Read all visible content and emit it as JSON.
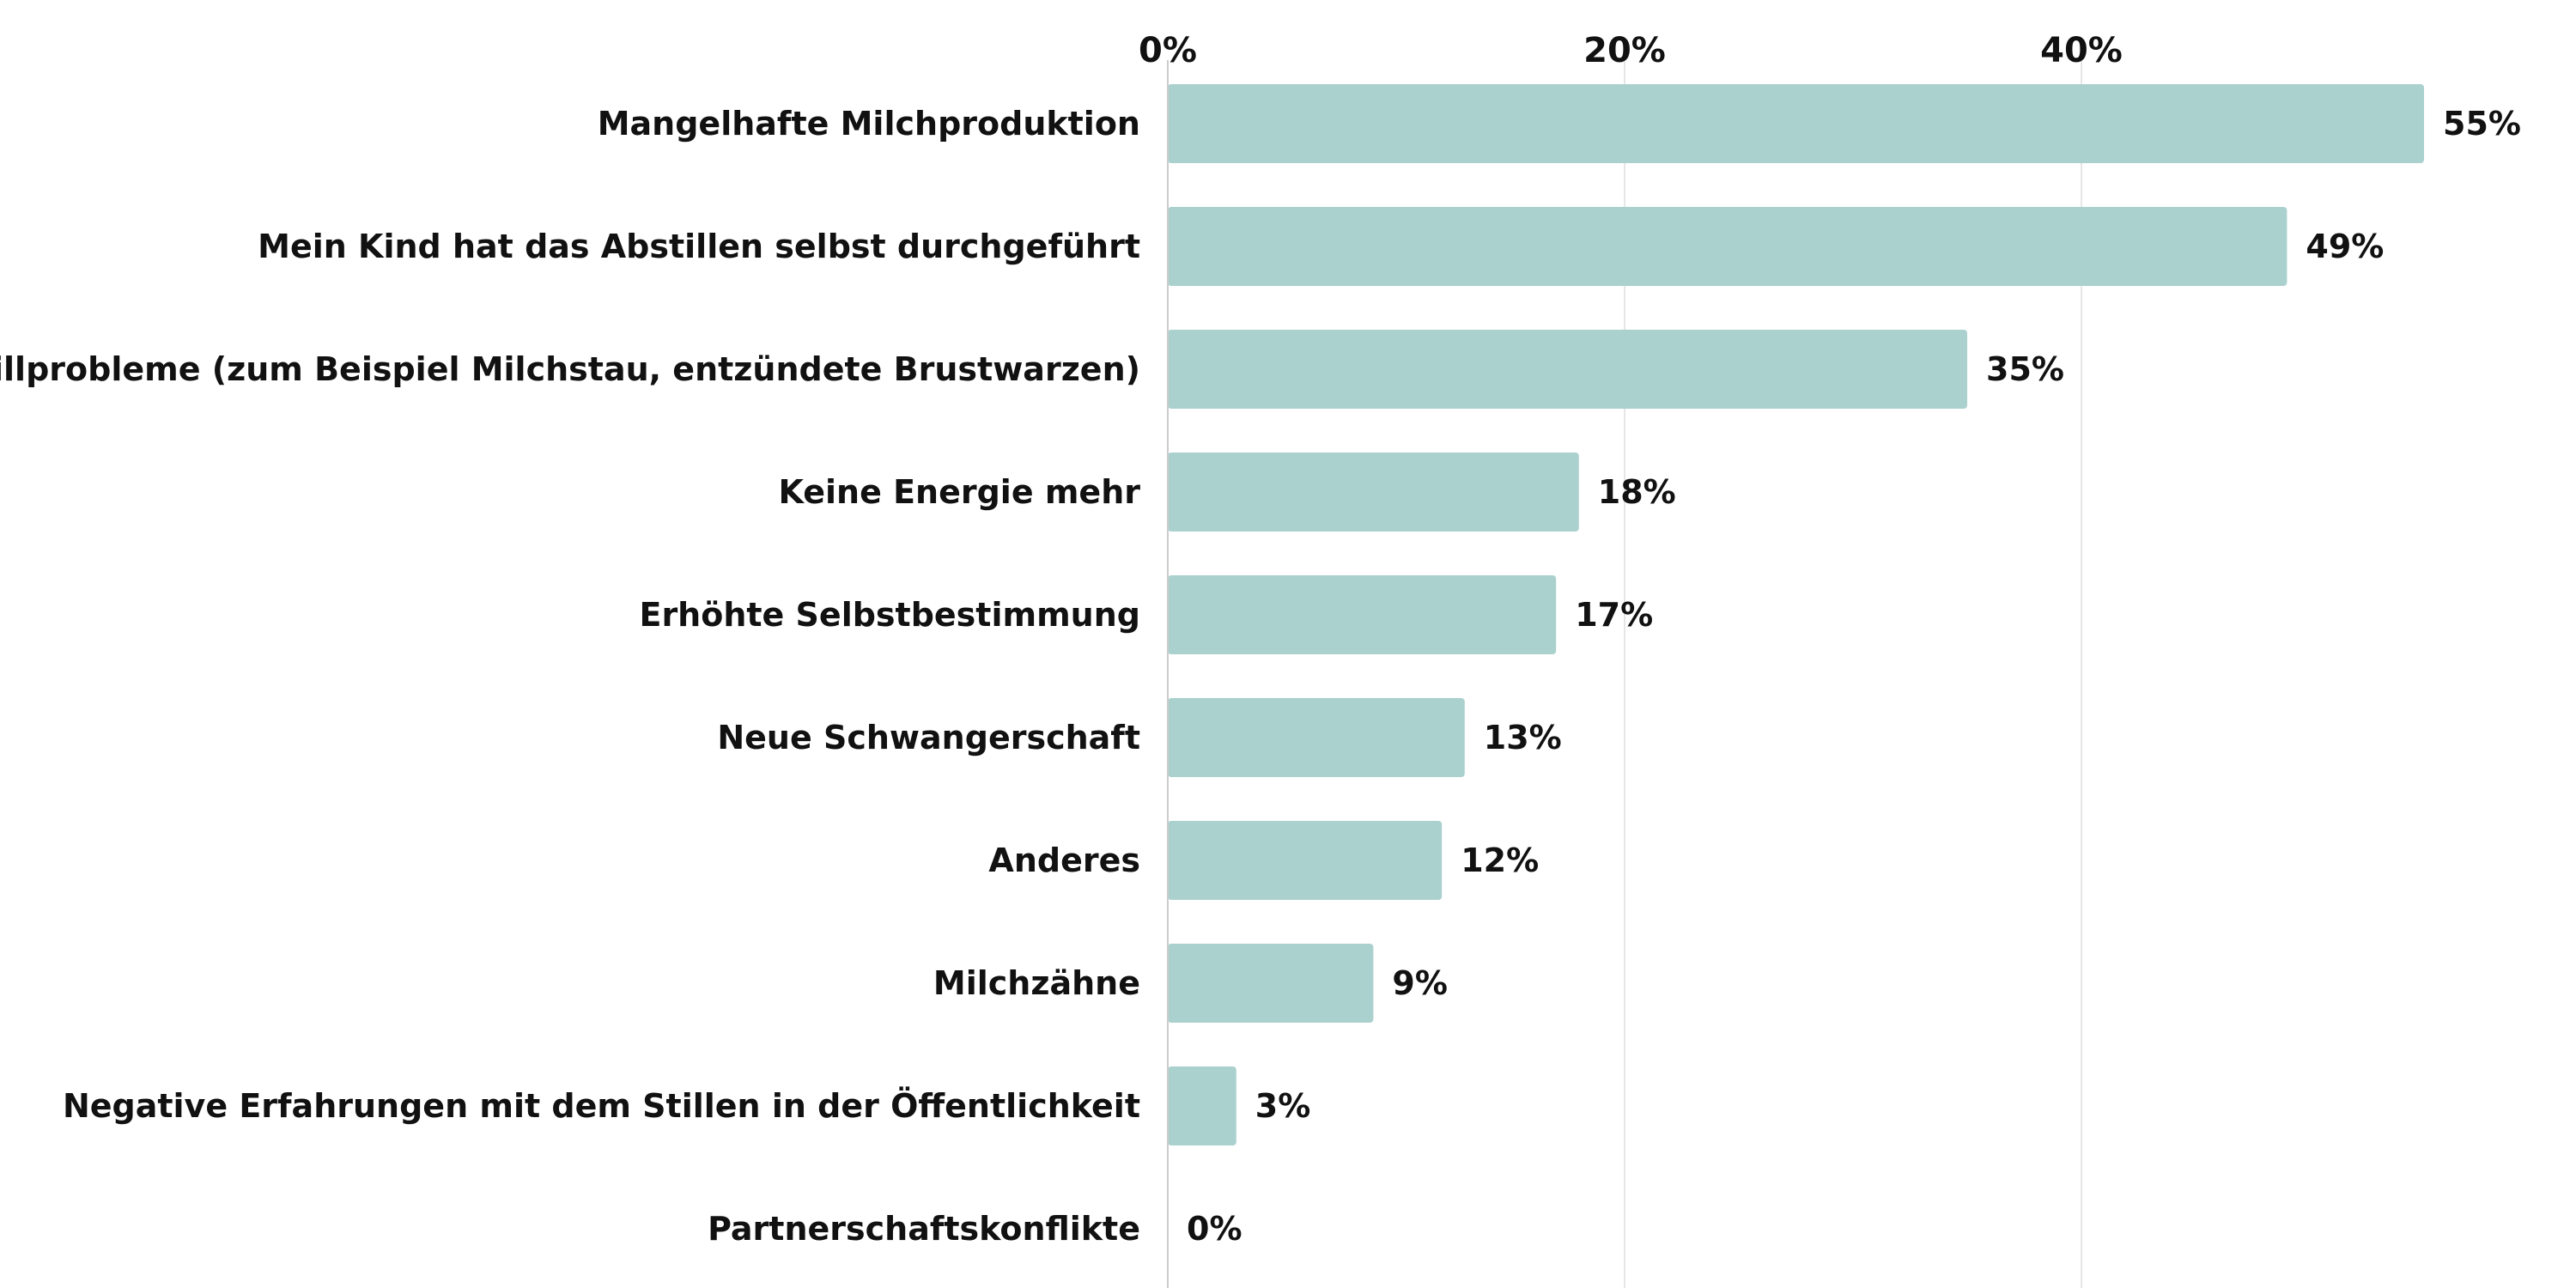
{
  "chart_data": {
    "type": "bar",
    "orientation": "horizontal",
    "title": "",
    "xlabel": "",
    "ylabel": "",
    "categories": [
      "Mangelhafte Milchproduktion",
      "Mein Kind hat das Abstillen selbst durchgeführt",
      "Stillprobleme (zum Beispiel Milchstau, entzündete Brustwarzen)",
      "Keine Energie mehr",
      "Erhöhte Selbstbestimmung",
      "Neue Schwangerschaft",
      "Anderes",
      "Milchzähne",
      "Negative Erfahrungen mit dem Stillen in der Öffentlichkeit",
      "Partnerschaftskonflikte"
    ],
    "values": [
      55,
      49,
      35,
      18,
      17,
      13,
      12,
      9,
      3,
      0
    ],
    "value_labels": [
      "55%",
      "49%",
      "35%",
      "18%",
      "17%",
      "13%",
      "12%",
      "9%",
      "3%",
      "0%"
    ],
    "xlim": [
      0,
      60
    ],
    "xticks": [
      0,
      20,
      40
    ],
    "xtick_labels": [
      "0%",
      "20%",
      "40%"
    ],
    "grid": true,
    "legend": "none",
    "bar_color": "#aad1ce",
    "grid_color": "#e6e6e6",
    "axis_color": "#cccccc",
    "text_color": "#111111"
  }
}
